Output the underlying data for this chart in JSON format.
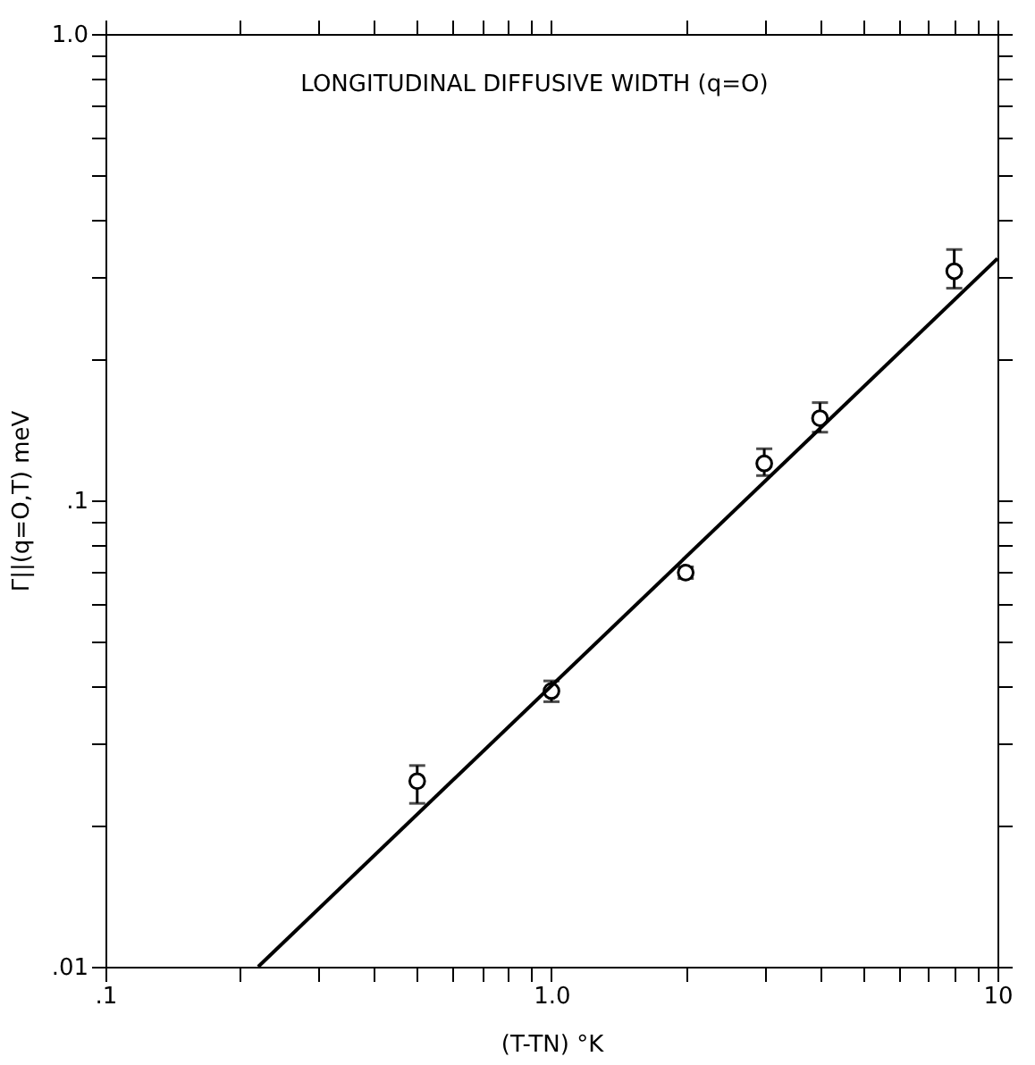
{
  "chart_data": {
    "type": "scatter",
    "title": "LONGITUDINAL DIFFUSIVE WIDTH (q=O)",
    "xlabel": "(T-TN) °K",
    "ylabel": "Γ||(q=O,T)  meV",
    "log": "xy",
    "grid": false,
    "xlim": [
      0.1,
      10
    ],
    "ylim": [
      0.01,
      1.0
    ],
    "xticks": [
      {
        "value": 0.1,
        "label": ".1"
      },
      {
        "value": 0.2,
        "label": null
      },
      {
        "value": 0.3,
        "label": null
      },
      {
        "value": 0.4,
        "label": null
      },
      {
        "value": 0.5,
        "label": null
      },
      {
        "value": 0.6,
        "label": null
      },
      {
        "value": 0.7,
        "label": null
      },
      {
        "value": 0.8,
        "label": null
      },
      {
        "value": 0.9,
        "label": null
      },
      {
        "value": 1,
        "label": "1.0"
      },
      {
        "value": 2,
        "label": null
      },
      {
        "value": 3,
        "label": null
      },
      {
        "value": 4,
        "label": null
      },
      {
        "value": 5,
        "label": null
      },
      {
        "value": 6,
        "label": null
      },
      {
        "value": 7,
        "label": null
      },
      {
        "value": 8,
        "label": null
      },
      {
        "value": 9,
        "label": null
      },
      10
    ],
    "yticks": [
      {
        "value": 0.01,
        "label": ".01"
      },
      {
        "value": 0.02,
        "label": null
      },
      {
        "value": 0.03,
        "label": null
      },
      {
        "value": 0.04,
        "label": null
      },
      {
        "value": 0.05,
        "label": null
      },
      {
        "value": 0.06,
        "label": null
      },
      {
        "value": 0.07,
        "label": null
      },
      {
        "value": 0.08,
        "label": null
      },
      {
        "value": 0.09,
        "label": null
      },
      {
        "value": 0.1,
        "label": ".1"
      },
      {
        "value": 0.2,
        "label": null
      },
      {
        "value": 0.3,
        "label": null
      },
      {
        "value": 0.4,
        "label": null
      },
      {
        "value": 0.5,
        "label": null
      },
      {
        "value": 0.6,
        "label": null
      },
      {
        "value": 0.7,
        "label": null
      },
      {
        "value": 0.8,
        "label": null
      },
      {
        "value": 0.9,
        "label": null
      },
      {
        "value": 1.0,
        "label": "1.0"
      }
    ],
    "series": [
      {
        "marker": "circle",
        "color": "#000000",
        "x": [
          0.5,
          1.0,
          2.0,
          3.0,
          4.0,
          8.0
        ],
        "values": [
          0.025,
          0.039,
          0.07,
          0.12,
          0.15,
          0.31
        ],
        "errors": [
          [
            0.0224,
            0.027
          ],
          [
            0.037,
            0.041
          ],
          [
            0.068,
            0.072
          ],
          [
            0.113,
            0.129
          ],
          [
            0.14,
            0.162
          ],
          [
            0.285,
            0.345
          ]
        ]
      },
      {
        "type": "line",
        "marker": "none",
        "line_style": "solid",
        "color": "#000000",
        "x": [
          0.22,
          10
        ],
        "values": [
          0.01,
          0.33
        ]
      }
    ]
  }
}
